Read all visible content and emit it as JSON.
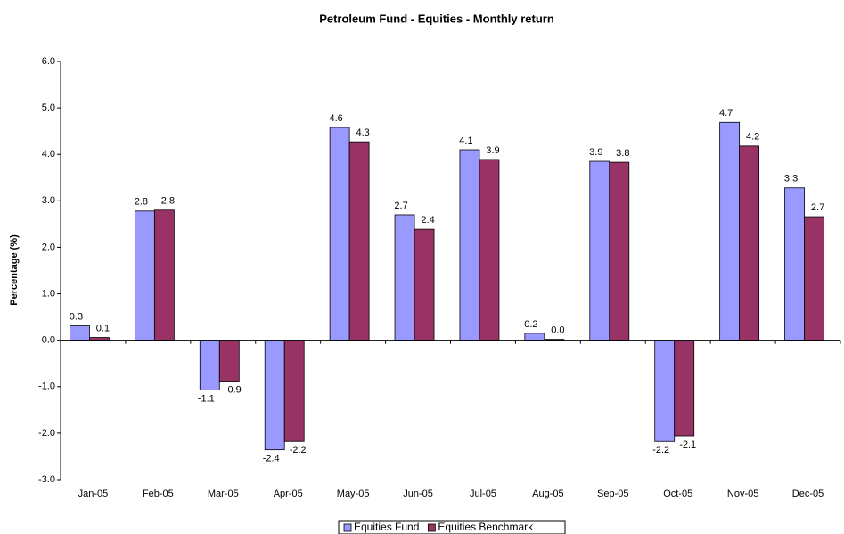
{
  "chart_data": {
    "type": "bar",
    "title": "Petroleum Fund - Equities - Monthly return",
    "y_label": "Percentage (%)",
    "categories": [
      "Jan-05",
      "Feb-05",
      "Mar-05",
      "Apr-05",
      "May-05",
      "Jun-05",
      "Jul-05",
      "Aug-05",
      "Sep-05",
      "Oct-05",
      "Nov-05",
      "Dec-05"
    ],
    "series": [
      {
        "name": "Equities Fund",
        "color": "#9999ff",
        "values": [
          0.31,
          2.78,
          -1.07,
          -2.36,
          4.58,
          2.7,
          4.1,
          0.15,
          3.85,
          -2.18,
          4.69,
          3.28
        ],
        "value_labels": [
          "0.3",
          "2.8",
          "-1.1",
          "-2.4",
          "4.6",
          "2.7",
          "4.1",
          "0.2",
          "3.9",
          "-2.2",
          "4.7",
          "3.3"
        ]
      },
      {
        "name": "Equities Benchmark",
        "color": "#993366",
        "values": [
          0.06,
          2.8,
          -0.88,
          -2.18,
          4.27,
          2.39,
          3.89,
          0.02,
          3.83,
          -2.06,
          4.18,
          2.66
        ],
        "value_labels": [
          "0.1",
          "2.8",
          "-0.9",
          "-2.2",
          "4.3",
          "2.4",
          "3.9",
          "0.0",
          "3.8",
          "-2.1",
          "4.2",
          "2.7"
        ]
      }
    ],
    "ylim": [
      -3,
      6
    ],
    "yticks": [
      {
        "value": -3,
        "label": "-3.0"
      },
      {
        "value": -2,
        "label": "-2.0"
      },
      {
        "value": -1,
        "label": "-1.0"
      },
      {
        "value": 0,
        "label": "0.0"
      },
      {
        "value": 1,
        "label": "1.0"
      },
      {
        "value": 2,
        "label": "2.0"
      },
      {
        "value": 3,
        "label": "3.0"
      },
      {
        "value": 4,
        "label": "4.0"
      },
      {
        "value": 5,
        "label": "5.0"
      },
      {
        "value": 6,
        "label": "6.0"
      }
    ],
    "grid": false,
    "legend": "bottom"
  }
}
